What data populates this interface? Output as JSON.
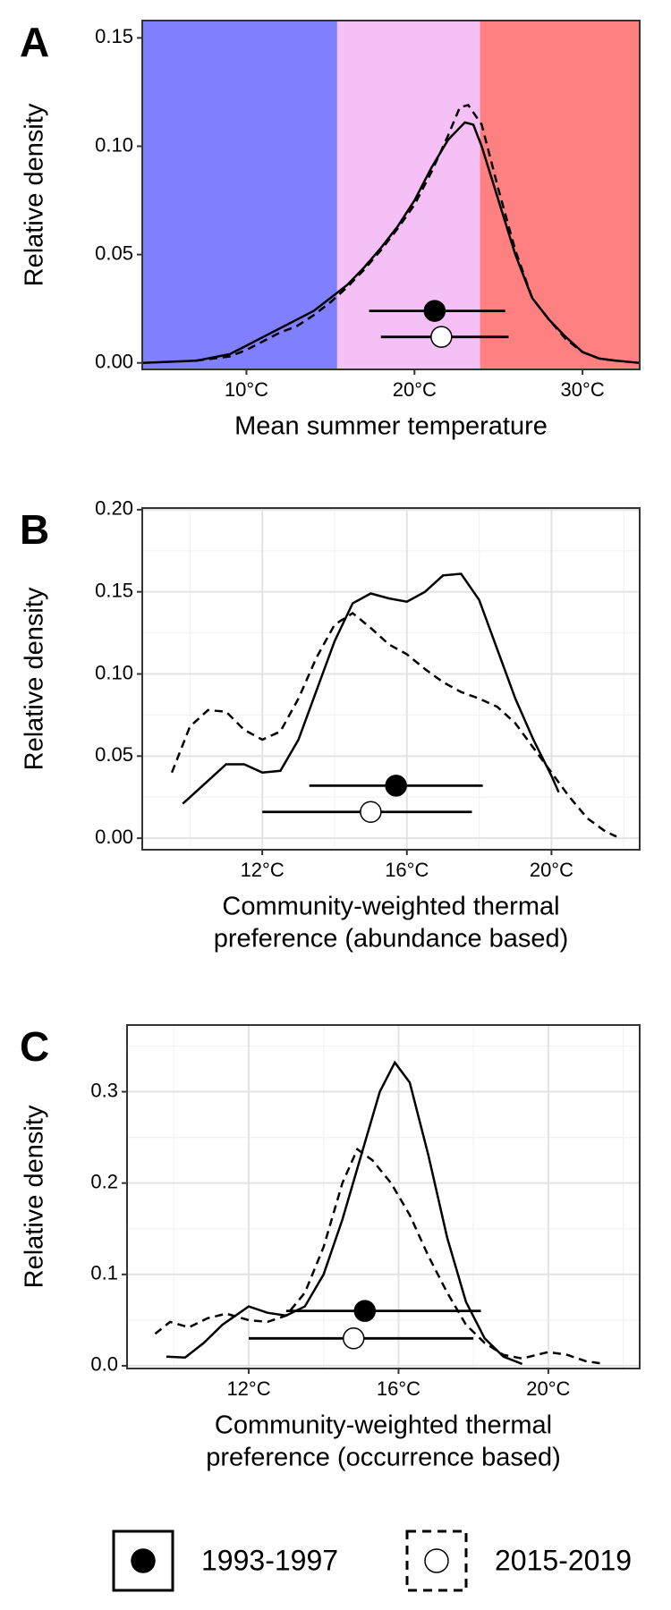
{
  "chart_data": [
    {
      "type": "line",
      "label": "A",
      "xlabel": [
        "Mean summer temperature"
      ],
      "ylabel": "Relative density",
      "xlim": [
        3.8,
        33.4
      ],
      "ylim": [
        -0.003,
        0.158
      ],
      "xticks": [
        {
          "value": 10,
          "label": "10°C"
        },
        {
          "value": 20,
          "label": "20°C"
        },
        {
          "value": 30,
          "label": "30°C"
        }
      ],
      "yticks": [
        {
          "value": 0,
          "label": "0.00"
        },
        {
          "value": 0.05,
          "label": "0.05"
        },
        {
          "value": 0.1,
          "label": "0.10"
        },
        {
          "value": 0.15,
          "label": "0.15"
        }
      ],
      "grid": false,
      "bands": [
        {
          "xmin": 0,
          "xmax": 15.4,
          "color": "#8080ff"
        },
        {
          "xmin": 15.4,
          "xmax": 23.9,
          "color": "#f5c0f5"
        },
        {
          "xmin": 23.9,
          "xmax": 40,
          "color": "#ff8080"
        }
      ],
      "series": [
        {
          "style": "solid",
          "x": [
            3.8,
            7,
            9,
            10,
            11,
            12,
            13,
            14,
            15,
            16,
            17,
            18,
            19,
            20,
            21,
            22,
            23,
            23.5,
            24,
            25,
            26,
            27,
            28,
            29,
            30,
            31,
            32,
            33.4
          ],
          "values": [
            0,
            0.001,
            0.004,
            0.008,
            0.012,
            0.016,
            0.02,
            0.024,
            0.03,
            0.036,
            0.044,
            0.053,
            0.063,
            0.075,
            0.09,
            0.103,
            0.111,
            0.11,
            0.1,
            0.075,
            0.05,
            0.03,
            0.02,
            0.012,
            0.005,
            0.002,
            0.001,
            0
          ],
          "point": {
            "x": 21.2,
            "y": 0.024,
            "xmin": 17.3,
            "xmax": 25.4,
            "fill": "#000000"
          }
        },
        {
          "style": "dashed",
          "x": [
            7,
            9,
            10,
            11,
            12,
            13,
            14,
            15,
            16,
            17,
            18,
            19,
            20,
            21,
            22,
            22.7,
            23.2,
            24,
            25,
            26,
            27,
            28,
            29,
            30,
            31,
            32
          ],
          "values": [
            0.001,
            0.003,
            0.006,
            0.01,
            0.014,
            0.017,
            0.022,
            0.028,
            0.035,
            0.043,
            0.052,
            0.062,
            0.073,
            0.088,
            0.105,
            0.118,
            0.119,
            0.11,
            0.08,
            0.052,
            0.03,
            0.02,
            0.011,
            0.005,
            0.002,
            0.001
          ],
          "point": {
            "x": 21.6,
            "y": 0.012,
            "xmin": 18,
            "xmax": 25.6,
            "fill": "#ffffff"
          }
        }
      ]
    },
    {
      "type": "line",
      "label": "B",
      "xlabel": [
        "Community-weighted thermal",
        "preference (abundance based)"
      ],
      "ylabel": "Relative density",
      "xlim": [
        8.68,
        22.44
      ],
      "ylim": [
        -0.007,
        0.201
      ],
      "xticks": [
        {
          "value": 12,
          "label": "12°C"
        },
        {
          "value": 16,
          "label": "16°C"
        },
        {
          "value": 20,
          "label": "20°C"
        }
      ],
      "yticks": [
        {
          "value": 0,
          "label": "0.00"
        },
        {
          "value": 0.05,
          "label": "0.05"
        },
        {
          "value": 0.1,
          "label": "0.10"
        },
        {
          "value": 0.15,
          "label": "0.15"
        },
        {
          "value": 0.2,
          "label": "0.20"
        }
      ],
      "grid": true,
      "series": [
        {
          "style": "solid",
          "x": [
            9.8,
            10.5,
            11,
            11.5,
            12,
            12.5,
            13,
            13.5,
            14,
            14.5,
            15,
            15.5,
            16,
            16.5,
            17,
            17.5,
            18,
            18.5,
            19,
            19.5,
            20,
            20.2
          ],
          "values": [
            0.021,
            0.035,
            0.045,
            0.045,
            0.04,
            0.041,
            0.06,
            0.09,
            0.12,
            0.143,
            0.149,
            0.146,
            0.144,
            0.15,
            0.16,
            0.161,
            0.145,
            0.115,
            0.085,
            0.06,
            0.038,
            0.028
          ],
          "point": {
            "x": 15.7,
            "y": 0.032,
            "xmin": 13.3,
            "xmax": 18.1,
            "fill": "#000000"
          }
        },
        {
          "style": "dashed",
          "x": [
            9.5,
            10,
            10.5,
            11,
            11.5,
            12,
            12.5,
            13,
            13.5,
            14,
            14.5,
            15,
            15.5,
            16,
            16.5,
            17,
            17.5,
            18,
            18.5,
            19,
            19.5,
            20,
            20.5,
            21,
            21.5,
            21.8
          ],
          "values": [
            0.04,
            0.068,
            0.078,
            0.077,
            0.066,
            0.06,
            0.065,
            0.085,
            0.11,
            0.13,
            0.137,
            0.128,
            0.118,
            0.112,
            0.103,
            0.095,
            0.089,
            0.085,
            0.08,
            0.07,
            0.055,
            0.04,
            0.025,
            0.012,
            0.004,
            0.001
          ],
          "point": {
            "x": 15,
            "y": 0.016,
            "xmin": 12,
            "xmax": 17.8,
            "fill": "#ffffff"
          }
        }
      ]
    },
    {
      "type": "line",
      "label": "C",
      "xlabel": [
        "Community-weighted thermal",
        "preference (occurrence based)"
      ],
      "ylabel": "Relative density",
      "xlim": [
        8.75,
        22.44
      ],
      "ylim": [
        -0.003,
        0.373
      ],
      "xticks": [
        {
          "value": 12,
          "label": "12°C"
        },
        {
          "value": 16,
          "label": "16°C"
        },
        {
          "value": 20,
          "label": "20°C"
        }
      ],
      "yticks": [
        {
          "value": 0,
          "label": "0.0"
        },
        {
          "value": 0.1,
          "label": "0.1"
        },
        {
          "value": 0.2,
          "label": "0.2"
        },
        {
          "value": 0.3,
          "label": "0.3"
        }
      ],
      "grid": true,
      "series": [
        {
          "style": "solid",
          "x": [
            9.8,
            10.3,
            10.8,
            11.3,
            12,
            12.5,
            13,
            13.5,
            14,
            14.5,
            15,
            15.5,
            15.9,
            16.3,
            16.8,
            17.3,
            17.8,
            18.3,
            18.8,
            19.3
          ],
          "values": [
            0.01,
            0.009,
            0.025,
            0.045,
            0.065,
            0.058,
            0.055,
            0.065,
            0.1,
            0.16,
            0.23,
            0.3,
            0.332,
            0.31,
            0.23,
            0.14,
            0.07,
            0.03,
            0.01,
            0.002
          ],
          "point": {
            "x": 15.1,
            "y": 0.06,
            "xmin": 13,
            "xmax": 18.2,
            "fill": "#000000"
          }
        },
        {
          "style": "dashed",
          "x": [
            9.5,
            9.9,
            10.4,
            10.9,
            11.4,
            12,
            12.5,
            13,
            13.5,
            14,
            14.5,
            14.9,
            15.3,
            15.8,
            16.3,
            16.8,
            17.3,
            17.8,
            18.3,
            18.8,
            19.3,
            20,
            20.5,
            21,
            21.5
          ],
          "values": [
            0.035,
            0.048,
            0.042,
            0.052,
            0.057,
            0.05,
            0.048,
            0.055,
            0.08,
            0.13,
            0.2,
            0.237,
            0.225,
            0.2,
            0.165,
            0.12,
            0.08,
            0.045,
            0.025,
            0.012,
            0.008,
            0.015,
            0.012,
            0.005,
            0.002
          ],
          "point": {
            "x": 14.8,
            "y": 0.03,
            "xmin": 12,
            "xmax": 18,
            "fill": "#ffffff"
          }
        }
      ]
    }
  ],
  "legend": [
    {
      "label": "1993-1997",
      "fill": "#000000",
      "style": "solid"
    },
    {
      "label": "2015-2019",
      "fill": "#ffffff",
      "style": "dashed"
    }
  ]
}
